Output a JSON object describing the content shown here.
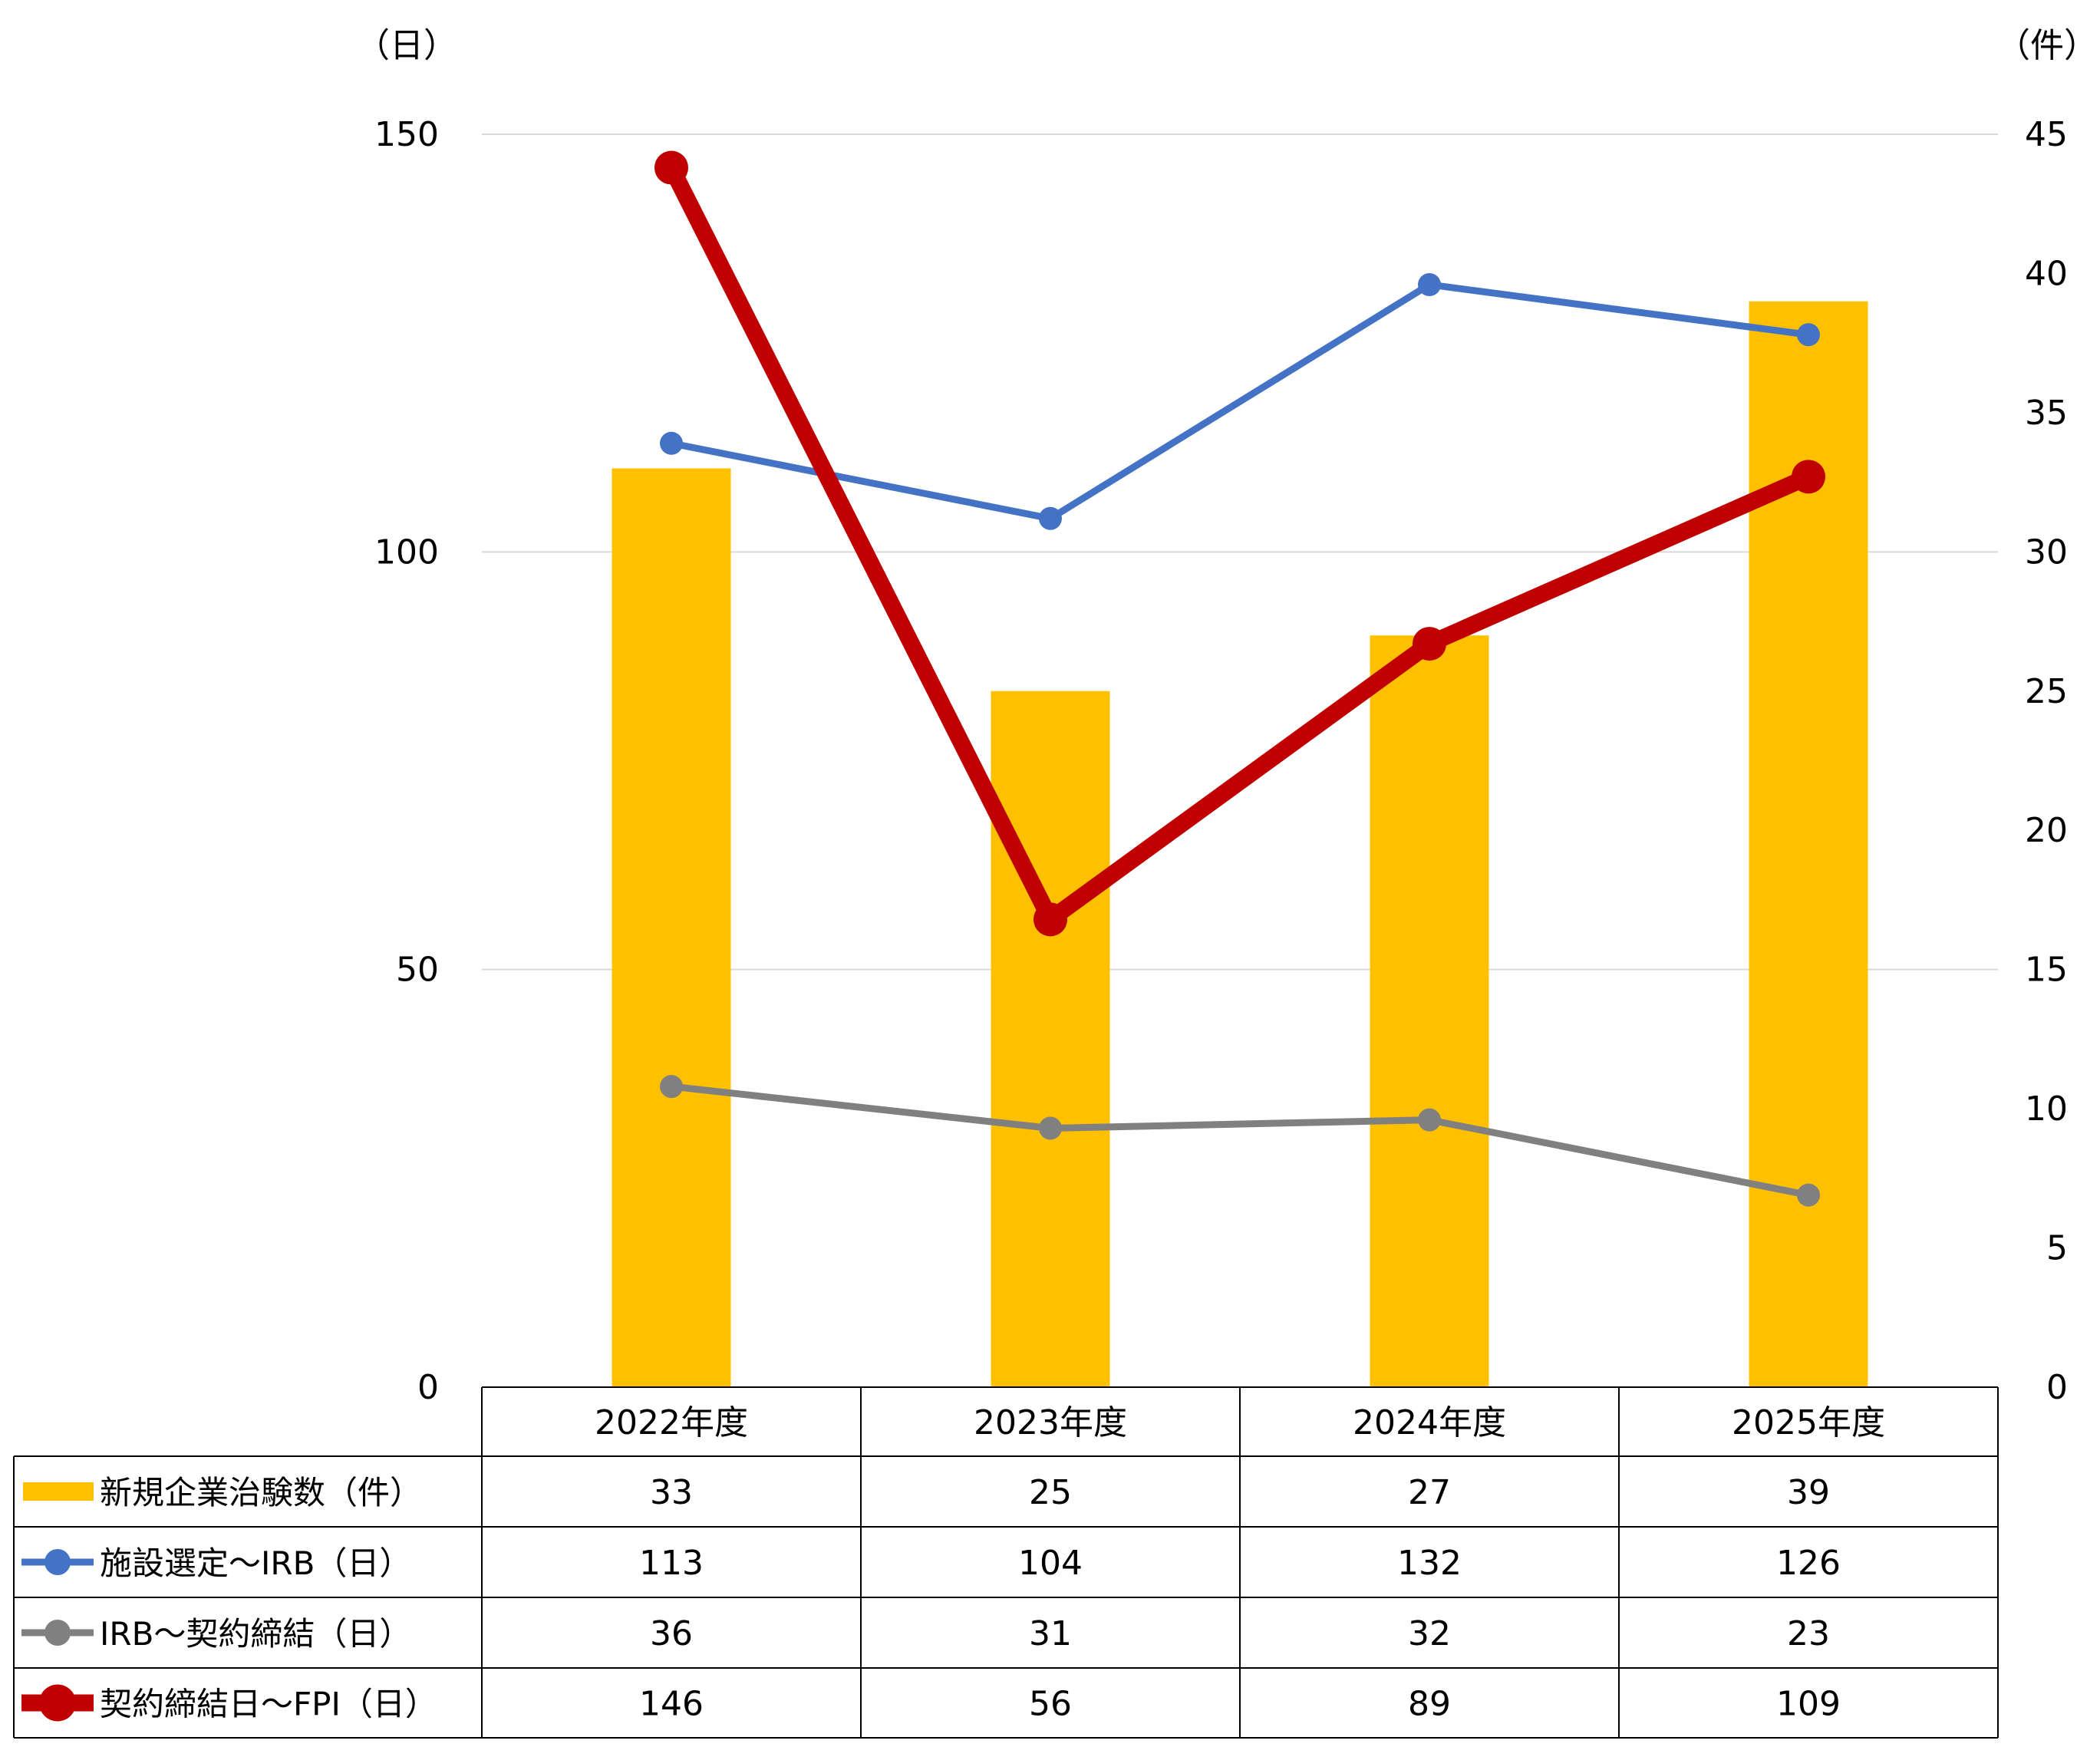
{
  "chart_data": {
    "type": "bar",
    "categories": [
      "2022年度",
      "2023年度",
      "2024年度",
      "2025年度"
    ],
    "left_axis": {
      "unit_label": "（日）",
      "ticks": [
        0,
        50,
        100,
        150
      ],
      "ylim": [
        0,
        150
      ]
    },
    "right_axis": {
      "unit_label": "（件）",
      "ticks": [
        0,
        5,
        10,
        15,
        20,
        25,
        30,
        35,
        40,
        45
      ],
      "ylim": [
        0,
        45
      ]
    },
    "grid": true,
    "legend": "data-table-below",
    "series": [
      {
        "name": "新規企業治験数（件）",
        "type": "bar",
        "axis": "right",
        "color": "#FFC000",
        "values": [
          33,
          25,
          27,
          39
        ]
      },
      {
        "name": "施設選定～IRB（日）",
        "type": "line",
        "axis": "left",
        "color": "#4472C4",
        "values": [
          113,
          104,
          132,
          126
        ]
      },
      {
        "name": "IRB～契約締結（日）",
        "type": "line",
        "axis": "left",
        "color": "#808080",
        "values": [
          36,
          31,
          32,
          23
        ]
      },
      {
        "name": "契約締結日～FPI（日）",
        "type": "line",
        "axis": "left",
        "color": "#C00000",
        "values": [
          146,
          56,
          89,
          109
        ]
      }
    ]
  }
}
